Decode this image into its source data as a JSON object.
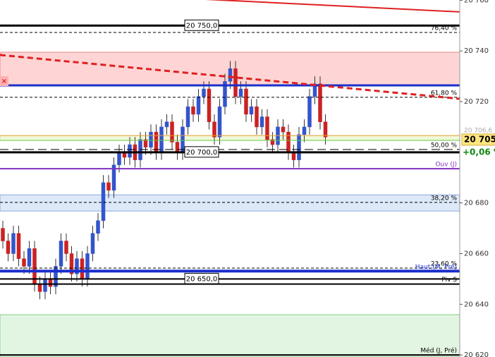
{
  "chart_data": {
    "type": "candlestick",
    "ylim": [
      20619.2,
      20760.1
    ],
    "yticks": [
      {
        "value": 20620,
        "label": "20 620"
      },
      {
        "value": 20640,
        "label": "20 640"
      },
      {
        "value": 20660,
        "label": "20 660"
      },
      {
        "value": 20680,
        "label": "20 680"
      },
      {
        "value": 20720,
        "label": "20 720"
      },
      {
        "value": 20740,
        "label": "20 740"
      },
      {
        "value": 20760,
        "label": "20 760"
      }
    ],
    "up_color": "#3355cc",
    "down_color": "#cc2222",
    "open": [
      20670,
      20665,
      20660,
      20668,
      20658,
      20655,
      20662,
      20648,
      20645,
      20650,
      20647,
      20655,
      20665,
      20660,
      20652,
      20658,
      20650,
      20660,
      20668,
      20673,
      20688,
      20685,
      20695,
      20700,
      20698,
      20703,
      20697,
      20705,
      20702,
      20708,
      20700,
      20710,
      20712,
      20704,
      20700,
      20710,
      20718,
      20715,
      20722,
      20725,
      20712,
      20706,
      20718,
      20728,
      20733,
      20722,
      20725,
      20715,
      20718,
      20710,
      20714,
      20705,
      20703,
      20710,
      20708,
      20700,
      20697,
      20707,
      20710,
      20722,
      20727,
      20712
    ],
    "high": [
      20673,
      20668,
      20671,
      20671,
      20661,
      20665,
      20665,
      20651,
      20653,
      20653,
      20658,
      20668,
      20668,
      20663,
      20661,
      20661,
      20663,
      20671,
      20676,
      20691,
      20691,
      20698,
      20703,
      20703,
      20706,
      20706,
      20708,
      20708,
      20711,
      20711,
      20713,
      20715,
      20715,
      20707,
      20713,
      20721,
      20721,
      20725,
      20728,
      20728,
      20715,
      20721,
      20731,
      20736,
      20736,
      20728,
      20728,
      20721,
      20721,
      20717,
      20717,
      20708,
      20713,
      20713,
      20711,
      20703,
      20710,
      20713,
      20725,
      20730,
      20730,
      20715
    ],
    "low": [
      20662,
      20657,
      20657,
      20655,
      20652,
      20652,
      20645,
      20642,
      20642,
      20644,
      20644,
      20652,
      20657,
      20649,
      20649,
      20647,
      20647,
      20657,
      20665,
      20670,
      20682,
      20682,
      20692,
      20695,
      20695,
      20694,
      20694,
      20699,
      20699,
      20697,
      20697,
      20707,
      20701,
      20697,
      20697,
      20707,
      20712,
      20712,
      20719,
      20709,
      20703,
      20703,
      20715,
      20725,
      20719,
      20719,
      20712,
      20712,
      20707,
      20707,
      20702,
      20700,
      20700,
      20705,
      20697,
      20694,
      20694,
      20704,
      20707,
      20719,
      20709,
      20703
    ],
    "close": [
      20665,
      20660,
      20668,
      20658,
      20655,
      20662,
      20648,
      20645,
      20650,
      20647,
      20655,
      20665,
      20660,
      20652,
      20658,
      20650,
      20660,
      20668,
      20673,
      20688,
      20685,
      20695,
      20700,
      20698,
      20703,
      20697,
      20705,
      20702,
      20708,
      20700,
      20710,
      20712,
      20704,
      20700,
      20710,
      20718,
      20715,
      20722,
      20725,
      20712,
      20706,
      20718,
      20728,
      20733,
      20722,
      20725,
      20715,
      20718,
      20710,
      20714,
      20705,
      20703,
      20710,
      20708,
      20700,
      20697,
      20707,
      20710,
      20722,
      20727,
      20712,
      20706
    ],
    "zones": [
      {
        "from": 20726.4,
        "to": 20739.5,
        "color": "#ffd4d4",
        "border": "#e08a8a"
      },
      {
        "from": 20704.7,
        "to": 20706.6,
        "color": "#f2f8d8",
        "border": "#c8dca0"
      },
      {
        "from": 20676.8,
        "to": 20683.2,
        "color": "#dde8f8",
        "border": "#8aaadd"
      },
      {
        "from": 20619.2,
        "to": 20635.9,
        "color": "#e2f5e2",
        "border": "#8acc8a"
      }
    ],
    "levels": [
      {
        "value": 20750,
        "color": "#000000",
        "width": 3,
        "label": "20 750,0",
        "style": "box"
      },
      {
        "value": 20747.3,
        "color": "#000000",
        "width": 1,
        "dash": "4 3",
        "label": "76,40 %"
      },
      {
        "value": 20726.4,
        "color": "#1a2fcc",
        "width": 3
      },
      {
        "value": 20721.7,
        "color": "#000000",
        "width": 1,
        "dash": "4 3",
        "label": "61,80 %"
      },
      {
        "value": 20706.6,
        "color": "#e8a040",
        "width": 1
      },
      {
        "value": 20704.7,
        "color": "#66cc44",
        "width": 1
      },
      {
        "value": 20701.1,
        "color": "#000000",
        "width": 1,
        "dash": "12 6",
        "label": "50,00 %"
      },
      {
        "value": 20700,
        "color": "#000000",
        "width": 3,
        "label": "20 700,0",
        "style": "box"
      },
      {
        "value": 20693.5,
        "color": "#8030c0",
        "width": 2,
        "label": "Ouv (J)"
      },
      {
        "value": 20680.2,
        "color": "#000000",
        "width": 1,
        "dash": "4 3",
        "label": "38,20 %"
      },
      {
        "value": 20654.3,
        "color": "#000000",
        "width": 1,
        "dash": "4 3",
        "label": "23,60 %"
      },
      {
        "value": 20653.1,
        "color": "#1a2fcc",
        "width": 4,
        "label": "Haut (M, Pré)"
      },
      {
        "value": 20650,
        "color": "#000000",
        "width": 2,
        "label": "20 650,0",
        "style": "box"
      },
      {
        "value": 20648,
        "color": "#000000",
        "width": 2,
        "label": "Piv S"
      },
      {
        "value": 20620,
        "color": "#000000",
        "width": 2,
        "label": "Méd (J, Pré)"
      }
    ],
    "trendlines": [
      {
        "start": 20764.4,
        "end": 20755.4,
        "color": "#e02020",
        "width": 2
      },
      {
        "start": 20738.4,
        "end": 20721.1,
        "color": "#e02020",
        "width": 3,
        "dash": "8 5"
      }
    ],
    "last_price": {
      "value": 20705,
      "label": "20 705"
    },
    "previous_tag": "20 706,6",
    "change": "+0,06 %"
  }
}
